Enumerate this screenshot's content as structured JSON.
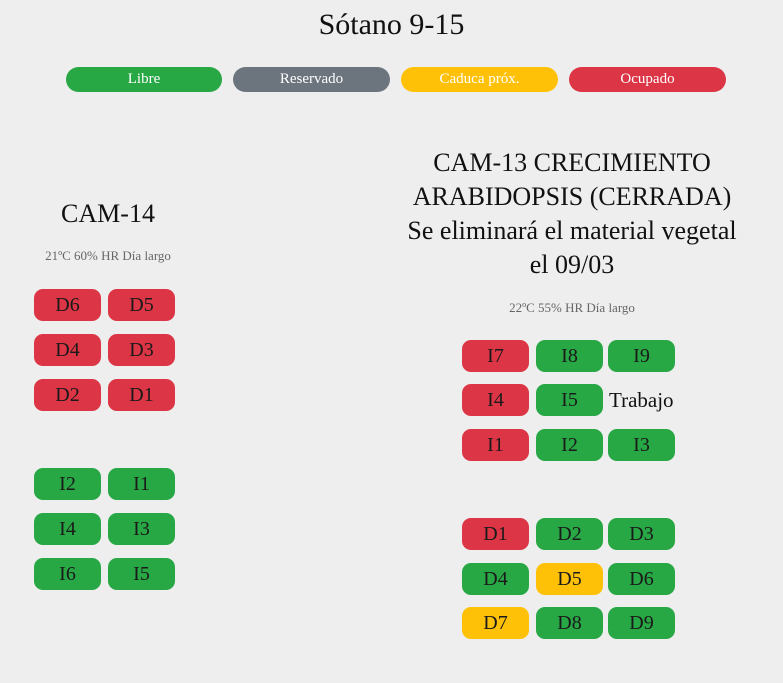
{
  "page": {
    "title": "Sótano 9-15"
  },
  "legend": [
    {
      "label": "Libre",
      "color": "#28a745"
    },
    {
      "label": "Reservado",
      "color": "#6c757d"
    },
    {
      "label": "Caduca próx.",
      "color": "#ffc107"
    },
    {
      "label": "Ocupado",
      "color": "#dc3545"
    }
  ],
  "cam14": {
    "title": "CAM-14",
    "conditions": "21ºC 60% HR Día largo",
    "slots": {
      "D6": "D6",
      "D5": "D5",
      "D4": "D4",
      "D3": "D3",
      "D2": "D2",
      "D1": "D1",
      "I2": "I2",
      "I1": "I1",
      "I4": "I4",
      "I3": "I3",
      "I6": "I6",
      "I5": "I5"
    }
  },
  "cam13": {
    "title_line1": "CAM-13 CRECIMIENTO",
    "title_line2": "ARABIDOPSIS (CERRADA)",
    "title_line3": "Se eliminará el material vegetal",
    "title_line4": "el 09/03",
    "conditions": "22ºC 55% HR Día largo",
    "work_label": "Trabajo",
    "slots": {
      "I7": "I7",
      "I8": "I8",
      "I9": "I9",
      "I4": "I4",
      "I5": "I5",
      "I1": "I1",
      "I2": "I2",
      "I3": "I3",
      "D1": "D1",
      "D2": "D2",
      "D3": "D3",
      "D4": "D4",
      "D5": "D5",
      "D6": "D6",
      "D7": "D7",
      "D8": "D8",
      "D9": "D9"
    }
  }
}
